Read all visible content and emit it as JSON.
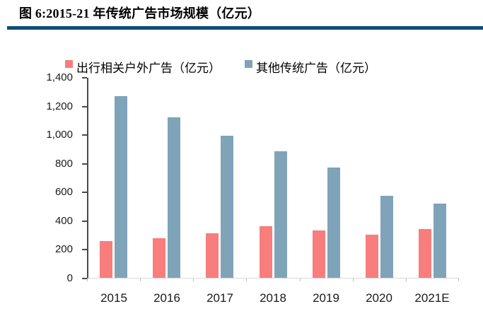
{
  "page": {
    "title": "图 6:2015-21 年传统广告市场规模（亿元）"
  },
  "colors": {
    "divider": "#0e4d73",
    "series1": "#f87d7d",
    "series2": "#7fa4b9",
    "axis_dark": "#4a4a4a",
    "baseline_light": "#d9d9d9",
    "text": "#1a1a1a"
  },
  "chart_data": {
    "type": "bar",
    "title": "图 6:2015-21 年传统广告市场规模（亿元）",
    "categories": [
      "2015",
      "2016",
      "2017",
      "2018",
      "2019",
      "2020",
      "2021E"
    ],
    "series": [
      {
        "name": "出行相关户外广告（亿元）",
        "color": "#f87d7d",
        "values": [
          255,
          275,
          310,
          360,
          330,
          300,
          340
        ]
      },
      {
        "name": "其他传统广告（亿元）",
        "color": "#7fa4b9",
        "values": [
          1265,
          1120,
          990,
          880,
          770,
          570,
          520
        ]
      }
    ],
    "xlabel": "",
    "ylabel": "",
    "ylim": [
      0,
      1400
    ],
    "ytick_step": 200,
    "ytick_labels": [
      "0",
      "200",
      "400",
      "600",
      "800",
      "1,000",
      "1,200",
      "1,400"
    ],
    "grid": false,
    "legend_position": "top"
  }
}
